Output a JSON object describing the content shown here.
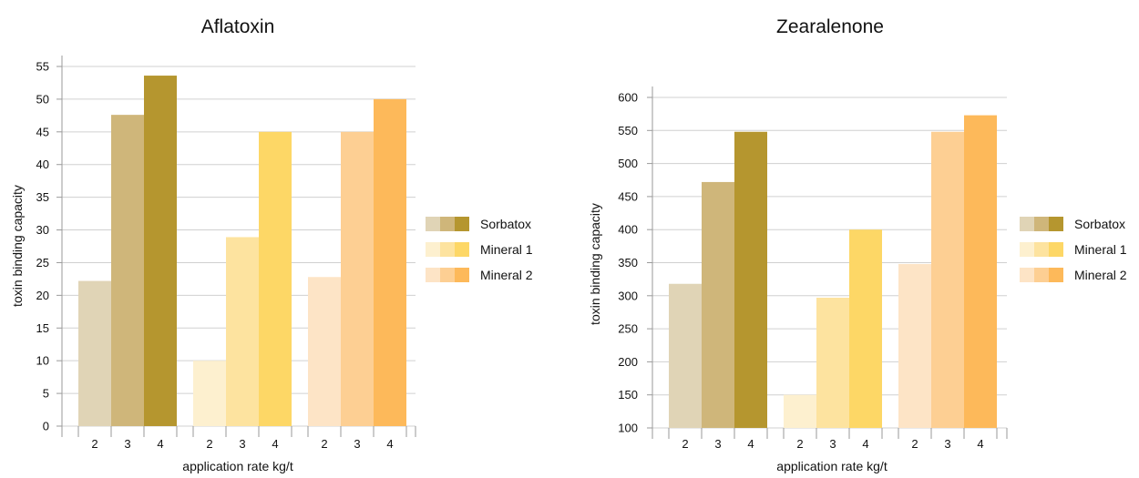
{
  "chart_data": [
    {
      "type": "bar",
      "title": "Aflatoxin",
      "xlabel": "application rate kg/t",
      "ylabel": "toxin binding capacity",
      "ylim": [
        0,
        55
      ],
      "yticks": [
        0,
        5,
        10,
        15,
        20,
        25,
        30,
        35,
        40,
        45,
        50,
        55
      ],
      "categories": [
        "2",
        "3",
        "4"
      ],
      "grid": true,
      "legend_position": "right",
      "series": [
        {
          "name": "Sorbatox",
          "values": [
            22.2,
            47.6,
            53.6
          ],
          "colors": [
            "#e0d4b6",
            "#cfb67a",
            "#b5962f"
          ]
        },
        {
          "name": "Mineral 1",
          "values": [
            10,
            28.9,
            45
          ],
          "colors": [
            "#fdf0cf",
            "#fde39f",
            "#fdd766"
          ]
        },
        {
          "name": "Mineral 2",
          "values": [
            22.8,
            45,
            50
          ],
          "colors": [
            "#fde4c6",
            "#fdcf93",
            "#fdb95a"
          ]
        }
      ]
    },
    {
      "type": "bar",
      "title": "Zearalenone",
      "xlabel": "application rate kg/t",
      "ylabel": "toxin binding capacity",
      "ylim": [
        100,
        600
      ],
      "yticks": [
        100,
        150,
        200,
        250,
        300,
        350,
        400,
        450,
        500,
        550,
        600
      ],
      "categories": [
        "2",
        "3",
        "4"
      ],
      "grid": true,
      "legend_position": "right",
      "series": [
        {
          "name": "Sorbatox",
          "values": [
            318,
            472,
            548
          ],
          "colors": [
            "#e0d4b6",
            "#cfb67a",
            "#b5962f"
          ]
        },
        {
          "name": "Mineral 1",
          "values": [
            150,
            297,
            400
          ],
          "colors": [
            "#fdf0cf",
            "#fde39f",
            "#fdd766"
          ]
        },
        {
          "name": "Mineral 2",
          "values": [
            348,
            548,
            573
          ],
          "colors": [
            "#fde4c6",
            "#fdcf93",
            "#fdb95a"
          ]
        }
      ]
    }
  ]
}
